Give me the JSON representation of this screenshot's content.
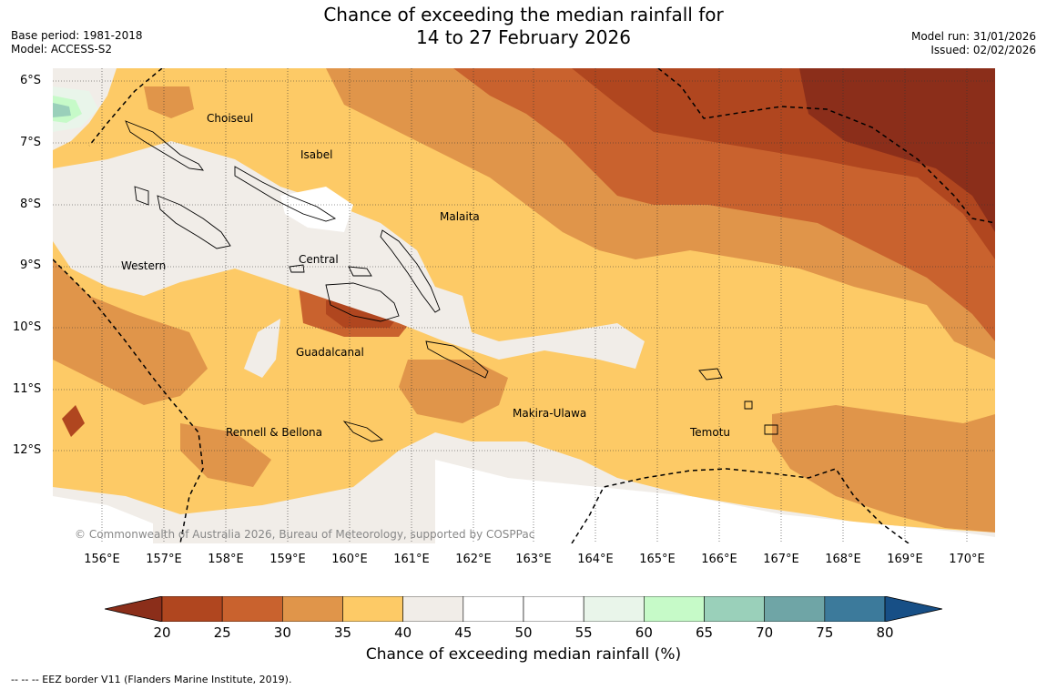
{
  "title": {
    "line1": "Chance of exceeding the median rainfall for",
    "line2": "14 to 27 February 2026"
  },
  "meta_left": {
    "base_period": "Base period: 1981-2018",
    "model": "Model: ACCESS-S2"
  },
  "meta_right": {
    "model_run": "Model run: 31/01/2026",
    "issued": "Issued: 02/02/2026"
  },
  "lat_labels": [
    "6°S",
    "7°S",
    "8°S",
    "9°S",
    "10°S",
    "11°S",
    "12°S"
  ],
  "lon_labels": [
    "156°E",
    "157°E",
    "158°E",
    "159°E",
    "160°E",
    "161°E",
    "162°E",
    "163°E",
    "164°E",
    "165°E",
    "166°E",
    "167°E",
    "168°E",
    "169°E",
    "170°E"
  ],
  "regions": {
    "choiseul": "Choiseul",
    "isabel": "Isabel",
    "malaita": "Malaita",
    "western": "Western",
    "central": "Central",
    "guadalcanal": "Guadalcanal",
    "makira": "Makira-Ulawa",
    "rennell": "Rennell & Bellona",
    "temotu": "Temotu"
  },
  "copyright": "© Commonwealth of Australia 2026, Bureau of Meteorology, supported by COSPPac",
  "colorbar": {
    "ticks": [
      "20",
      "25",
      "30",
      "35",
      "40",
      "45",
      "50",
      "55",
      "60",
      "65",
      "70",
      "75",
      "80"
    ],
    "colors": [
      "#8b2e1a",
      "#b0461f",
      "#c9622e",
      "#e0954a",
      "#fdca66",
      "#f1ede8",
      "#ffffff",
      "#ffffff",
      "#e9f5ea",
      "#c6fac8",
      "#9ad0ba",
      "#6fa5a6",
      "#3c7a9b",
      "#174f86"
    ],
    "label": "Chance of exceeding median rainfall (%)"
  },
  "footnote": "--  --  -- EEZ border V11 (Flanders Marine Institute, 2019)."
}
